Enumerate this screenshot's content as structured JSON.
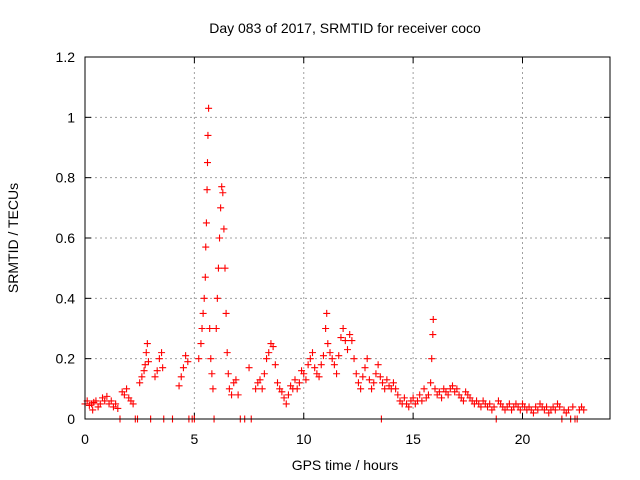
{
  "chart_data": {
    "type": "scatter",
    "title": "Day 083 of 2017, SRMTID for receiver coco",
    "xlabel": "GPS time / hours",
    "ylabel": "SRMTID / TECUs",
    "xlim": [
      0,
      24
    ],
    "ylim": [
      0,
      1.2
    ],
    "xticks": [
      0,
      5,
      10,
      15,
      20
    ],
    "xtick_labels": [
      "0",
      "5",
      "10",
      "15",
      "20"
    ],
    "yticks": [
      0,
      0.2,
      0.4,
      0.6,
      0.8,
      1,
      1.2
    ],
    "ytick_labels": [
      "0",
      "0.2",
      "0.4",
      "0.6",
      "0.8",
      "1",
      "1.2"
    ],
    "grid": true,
    "marker": "+",
    "series": [
      {
        "name": "SRMTID",
        "color": "#ff0000",
        "points": [
          [
            0.0,
            0.05
          ],
          [
            0.1,
            0.06
          ],
          [
            0.2,
            0.045
          ],
          [
            0.3,
            0.05
          ],
          [
            0.35,
            0.03
          ],
          [
            0.4,
            0.055
          ],
          [
            0.5,
            0.06
          ],
          [
            0.6,
            0.04
          ],
          [
            0.7,
            0.05
          ],
          [
            0.8,
            0.07
          ],
          [
            0.9,
            0.06
          ],
          [
            1.0,
            0.075
          ],
          [
            1.1,
            0.05
          ],
          [
            1.2,
            0.06
          ],
          [
            1.3,
            0.04
          ],
          [
            1.4,
            0.05
          ],
          [
            1.5,
            0.035
          ],
          [
            1.6,
            0.0
          ],
          [
            1.7,
            0.09
          ],
          [
            1.8,
            0.08
          ],
          [
            1.9,
            0.1
          ],
          [
            2.0,
            0.07
          ],
          [
            2.1,
            0.06
          ],
          [
            2.2,
            0.05
          ],
          [
            2.3,
            0.0
          ],
          [
            2.4,
            0.0
          ],
          [
            2.5,
            0.12
          ],
          [
            2.6,
            0.14
          ],
          [
            2.7,
            0.16
          ],
          [
            2.75,
            0.18
          ],
          [
            2.8,
            0.22
          ],
          [
            2.85,
            0.25
          ],
          [
            2.9,
            0.19
          ],
          [
            3.0,
            0.0
          ],
          [
            3.2,
            0.14
          ],
          [
            3.3,
            0.16
          ],
          [
            3.4,
            0.2
          ],
          [
            3.5,
            0.22
          ],
          [
            3.55,
            0.17
          ],
          [
            3.6,
            0.0
          ],
          [
            4.0,
            0.0
          ],
          [
            4.3,
            0.11
          ],
          [
            4.4,
            0.14
          ],
          [
            4.5,
            0.17
          ],
          [
            4.6,
            0.21
          ],
          [
            4.7,
            0.19
          ],
          [
            4.75,
            0.0
          ],
          [
            4.9,
            0.0
          ],
          [
            5.0,
            0.0
          ],
          [
            5.2,
            0.2
          ],
          [
            5.3,
            0.25
          ],
          [
            5.35,
            0.3
          ],
          [
            5.4,
            0.35
          ],
          [
            5.45,
            0.4
          ],
          [
            5.5,
            0.47
          ],
          [
            5.52,
            0.57
          ],
          [
            5.55,
            0.65
          ],
          [
            5.58,
            0.76
          ],
          [
            5.6,
            0.85
          ],
          [
            5.62,
            0.94
          ],
          [
            5.65,
            1.03
          ],
          [
            5.7,
            0.3
          ],
          [
            5.75,
            0.2
          ],
          [
            5.8,
            0.15
          ],
          [
            5.85,
            0.1
          ],
          [
            5.9,
            0.0
          ],
          [
            6.0,
            0.3
          ],
          [
            6.05,
            0.4
          ],
          [
            6.1,
            0.5
          ],
          [
            6.15,
            0.6
          ],
          [
            6.2,
            0.7
          ],
          [
            6.25,
            0.77
          ],
          [
            6.3,
            0.75
          ],
          [
            6.35,
            0.63
          ],
          [
            6.4,
            0.5
          ],
          [
            6.45,
            0.35
          ],
          [
            6.5,
            0.22
          ],
          [
            6.55,
            0.15
          ],
          [
            6.6,
            0.1
          ],
          [
            6.7,
            0.08
          ],
          [
            6.8,
            0.12
          ],
          [
            6.9,
            0.13
          ],
          [
            7.0,
            0.08
          ],
          [
            7.1,
            0.0
          ],
          [
            7.3,
            0.0
          ],
          [
            7.5,
            0.17
          ],
          [
            7.6,
            0.0
          ],
          [
            7.8,
            0.1
          ],
          [
            7.9,
            0.12
          ],
          [
            8.0,
            0.13
          ],
          [
            8.1,
            0.1
          ],
          [
            8.2,
            0.15
          ],
          [
            8.3,
            0.2
          ],
          [
            8.4,
            0.22
          ],
          [
            8.5,
            0.25
          ],
          [
            8.6,
            0.24
          ],
          [
            8.7,
            0.18
          ],
          [
            8.8,
            0.12
          ],
          [
            8.9,
            0.1
          ],
          [
            9.0,
            0.09
          ],
          [
            9.1,
            0.07
          ],
          [
            9.2,
            0.05
          ],
          [
            9.3,
            0.08
          ],
          [
            9.4,
            0.11
          ],
          [
            9.5,
            0.1
          ],
          [
            9.6,
            0.13
          ],
          [
            9.7,
            0.1
          ],
          [
            9.8,
            0.12
          ],
          [
            9.9,
            0.16
          ],
          [
            10.0,
            0.15
          ],
          [
            10.1,
            0.13
          ],
          [
            10.2,
            0.18
          ],
          [
            10.3,
            0.2
          ],
          [
            10.4,
            0.22
          ],
          [
            10.5,
            0.17
          ],
          [
            10.6,
            0.15
          ],
          [
            10.7,
            0.14
          ],
          [
            10.8,
            0.18
          ],
          [
            10.9,
            0.21
          ],
          [
            11.0,
            0.3
          ],
          [
            11.05,
            0.35
          ],
          [
            11.1,
            0.25
          ],
          [
            11.2,
            0.22
          ],
          [
            11.3,
            0.2
          ],
          [
            11.4,
            0.18
          ],
          [
            11.5,
            0.15
          ],
          [
            11.6,
            0.21
          ],
          [
            11.7,
            0.27
          ],
          [
            11.8,
            0.3
          ],
          [
            11.9,
            0.26
          ],
          [
            12.0,
            0.23
          ],
          [
            12.1,
            0.28
          ],
          [
            12.2,
            0.26
          ],
          [
            12.3,
            0.2
          ],
          [
            12.4,
            0.15
          ],
          [
            12.5,
            0.12
          ],
          [
            12.6,
            0.1
          ],
          [
            12.7,
            0.14
          ],
          [
            12.8,
            0.17
          ],
          [
            12.9,
            0.2
          ],
          [
            13.0,
            0.13
          ],
          [
            13.1,
            0.1
          ],
          [
            13.2,
            0.12
          ],
          [
            13.3,
            0.15
          ],
          [
            13.4,
            0.18
          ],
          [
            13.5,
            0.14
          ],
          [
            13.55,
            0.0
          ],
          [
            13.6,
            0.12
          ],
          [
            13.7,
            0.1
          ],
          [
            13.8,
            0.13
          ],
          [
            13.9,
            0.11
          ],
          [
            14.0,
            0.1
          ],
          [
            14.1,
            0.12
          ],
          [
            14.2,
            0.1
          ],
          [
            14.3,
            0.08
          ],
          [
            14.4,
            0.06
          ],
          [
            14.5,
            0.05
          ],
          [
            14.6,
            0.07
          ],
          [
            14.7,
            0.05
          ],
          [
            14.8,
            0.04
          ],
          [
            14.9,
            0.06
          ],
          [
            15.0,
            0.07
          ],
          [
            15.1,
            0.05
          ],
          [
            15.2,
            0.06
          ],
          [
            15.3,
            0.08
          ],
          [
            15.4,
            0.06
          ],
          [
            15.5,
            0.1
          ],
          [
            15.6,
            0.07
          ],
          [
            15.7,
            0.08
          ],
          [
            15.8,
            0.12
          ],
          [
            15.85,
            0.2
          ],
          [
            15.9,
            0.28
          ],
          [
            15.92,
            0.33
          ],
          [
            16.0,
            0.1
          ],
          [
            16.1,
            0.08
          ],
          [
            16.2,
            0.09
          ],
          [
            16.3,
            0.07
          ],
          [
            16.4,
            0.1
          ],
          [
            16.5,
            0.09
          ],
          [
            16.6,
            0.08
          ],
          [
            16.7,
            0.1
          ],
          [
            16.8,
            0.11
          ],
          [
            16.9,
            0.09
          ],
          [
            17.0,
            0.1
          ],
          [
            17.1,
            0.08
          ],
          [
            17.2,
            0.07
          ],
          [
            17.3,
            0.06
          ],
          [
            17.4,
            0.09
          ],
          [
            17.5,
            0.08
          ],
          [
            17.6,
            0.07
          ],
          [
            17.7,
            0.06
          ],
          [
            17.8,
            0.05
          ],
          [
            17.9,
            0.06
          ],
          [
            18.0,
            0.05
          ],
          [
            18.1,
            0.04
          ],
          [
            18.2,
            0.06
          ],
          [
            18.3,
            0.05
          ],
          [
            18.4,
            0.04
          ],
          [
            18.5,
            0.05
          ],
          [
            18.6,
            0.03
          ],
          [
            18.7,
            0.04
          ],
          [
            18.8,
            0.0
          ],
          [
            18.9,
            0.06
          ],
          [
            19.0,
            0.05
          ],
          [
            19.1,
            0.04
          ],
          [
            19.2,
            0.03
          ],
          [
            19.3,
            0.04
          ],
          [
            19.4,
            0.05
          ],
          [
            19.5,
            0.03
          ],
          [
            19.6,
            0.04
          ],
          [
            19.7,
            0.05
          ],
          [
            19.8,
            0.04
          ],
          [
            19.9,
            0.03
          ],
          [
            20.0,
            0.05
          ],
          [
            20.1,
            0.04
          ],
          [
            20.2,
            0.03
          ],
          [
            20.3,
            0.04
          ],
          [
            20.4,
            0.03
          ],
          [
            20.5,
            0.02
          ],
          [
            20.6,
            0.04
          ],
          [
            20.7,
            0.03
          ],
          [
            20.8,
            0.05
          ],
          [
            20.9,
            0.04
          ],
          [
            21.0,
            0.03
          ],
          [
            21.1,
            0.04
          ],
          [
            21.2,
            0.02
          ],
          [
            21.3,
            0.03
          ],
          [
            21.4,
            0.04
          ],
          [
            21.5,
            0.03
          ],
          [
            21.6,
            0.05
          ],
          [
            21.7,
            0.04
          ],
          [
            21.8,
            0.0
          ],
          [
            21.9,
            0.03
          ],
          [
            22.0,
            0.02
          ],
          [
            22.1,
            0.03
          ],
          [
            22.2,
            0.0
          ],
          [
            22.3,
            0.04
          ],
          [
            22.4,
            0.0
          ],
          [
            22.5,
            0.0
          ],
          [
            22.6,
            0.03
          ],
          [
            22.7,
            0.04
          ],
          [
            22.8,
            0.03
          ]
        ]
      }
    ]
  }
}
